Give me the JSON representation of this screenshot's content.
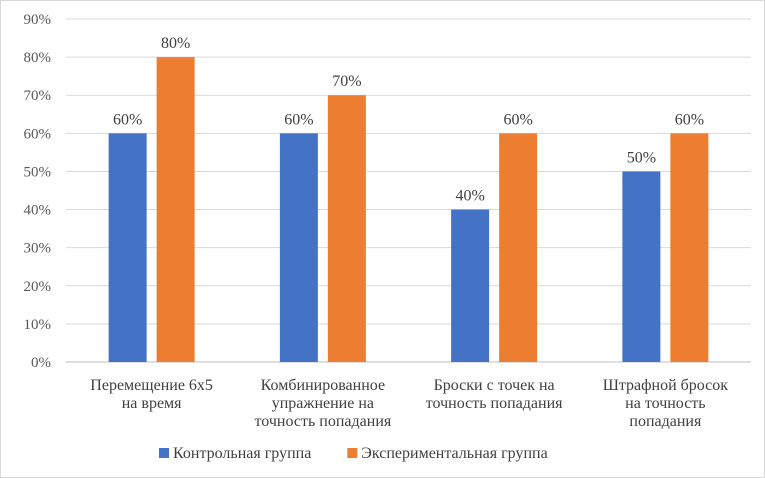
{
  "chart_data": {
    "type": "bar",
    "title": "",
    "xlabel": "",
    "ylabel": "",
    "ylim": [
      0,
      90
    ],
    "ytick_step": 10,
    "ytick_suffix": "%",
    "grid": true,
    "legend_position": "bottom",
    "categories": [
      [
        "Перемещение 6х5",
        "на время"
      ],
      [
        "Комбинированное",
        "упражнение на",
        "точность попадания"
      ],
      [
        "Броски с точек на",
        "точность попадания"
      ],
      [
        "Штрафной бросок",
        "на точность",
        "попадания"
      ]
    ],
    "series": [
      {
        "name": "Контрольная группа",
        "color": "#4472c4",
        "values": [
          60,
          60,
          40,
          50
        ]
      },
      {
        "name": "Экспериментальная группа",
        "color": "#ed7d31",
        "values": [
          80,
          70,
          60,
          60
        ]
      }
    ]
  }
}
